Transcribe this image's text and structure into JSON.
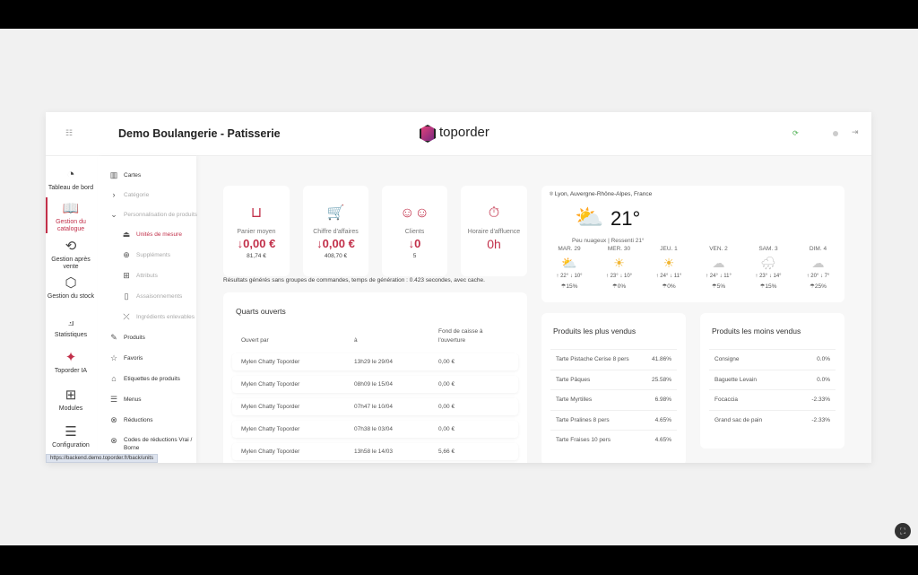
{
  "header": {
    "title": "Demo Boulangerie - Patisserie",
    "brand": "toporder",
    "brand_color": "#c2304a"
  },
  "rail": [
    {
      "label": "Tableau de bord",
      "icon": "gauge-icon"
    },
    {
      "label": "Gestion du catalogue",
      "icon": "book-icon",
      "active": true
    },
    {
      "label": "Gestion après vente",
      "icon": "refresh-gear-icon"
    },
    {
      "label": "Gestion du stock",
      "icon": "box-icon"
    },
    {
      "label": "Statistiques",
      "icon": "chart-icon"
    },
    {
      "label": "Toporder IA",
      "icon": "sparkle-icon"
    },
    {
      "label": "Modules",
      "icon": "modules-icon"
    },
    {
      "label": "Configuration",
      "icon": "sliders-icon"
    }
  ],
  "submenu": {
    "cartes": "Cartes",
    "categorie": "Catégorie",
    "perso": "Personnalisation de produits",
    "unites": "Unités de mesure",
    "supplements": "Suppléments",
    "attributs": "Attributs",
    "assaisonnements": "Assaisonnements",
    "ingredients": "Ingrédients enlevables",
    "produits": "Produits",
    "favoris": "Favoris",
    "etiquettes": "Etiquettes de produits",
    "menus": "Menus",
    "reductions": "Réductions",
    "codes": "Codes de réductions Vrai / Borne"
  },
  "status_url": "https://backend.demo.toporder.fr/back/units",
  "kpis": [
    {
      "label": "Panier moyen",
      "value": "↓0,00 €",
      "previous": "81,74 €"
    },
    {
      "label": "Chiffre d'affaires",
      "value": "↓0,00 €",
      "previous": "408,70 €"
    },
    {
      "label": "Clients",
      "value": "↓0",
      "previous": "5"
    },
    {
      "label": "Horaire d'affluence",
      "value": "0h"
    }
  ],
  "note": "Résultats générés sans groupes de commandes, temps de génération : 0.423 secondes, avec cache.",
  "weather": {
    "location": "Lyon, Auvergne-Rhône-Alpes, France",
    "temp": "21°",
    "desc": "Peu nuageux | Ressenti 21°",
    "days": [
      {
        "day": "MAR. 29",
        "icon": "sun-cloud-icon",
        "hi": "↑ 22°",
        "lo": "↓ 10°",
        "rain": "☂15%"
      },
      {
        "day": "MER. 30",
        "icon": "sun-icon",
        "hi": "↑ 23°",
        "lo": "↓ 10°",
        "rain": "☂0%"
      },
      {
        "day": "JEU. 1",
        "icon": "sun-icon",
        "hi": "↑ 24°",
        "lo": "↓ 11°",
        "rain": "☂0%"
      },
      {
        "day": "VEN. 2",
        "icon": "cloud-icon",
        "hi": "↑ 24°",
        "lo": "↓ 11°",
        "rain": "☂5%"
      },
      {
        "day": "SAM. 3",
        "icon": "rain-icon",
        "hi": "↑ 23°",
        "lo": "↓ 14°",
        "rain": "☂15%"
      },
      {
        "day": "DIM. 4",
        "icon": "cloud-icon",
        "hi": "↑ 20°",
        "lo": "↓ 7°",
        "rain": "☂25%"
      }
    ]
  },
  "shifts": {
    "title": "Quarts ouverts",
    "columns": [
      "Ouvert par",
      "à",
      "Fond de caisse à l'ouverture"
    ],
    "rows": [
      [
        "Mylen Chatty Toporder",
        "13h29 le 29/04",
        "0,00 €"
      ],
      [
        "Mylen Chatty Toporder",
        "08h09 le 15/04",
        "0,00 €"
      ],
      [
        "Mylen Chatty Toporder",
        "07h47 le 10/04",
        "0,00 €"
      ],
      [
        "Mylen Chatty Toporder",
        "07h38 le 03/04",
        "0,00 €"
      ],
      [
        "Mylen Chatty Toporder",
        "13h58 le 14/03",
        "5,66 €"
      ]
    ]
  },
  "best": {
    "title": "Produits les plus vendus",
    "rows": [
      [
        "Tarte Pistache Cerise 8 pers",
        "41.86%"
      ],
      [
        "Tarte Pâques",
        "25.58%"
      ],
      [
        "Tarte Myrtilles",
        "6.98%"
      ],
      [
        "Tarte Pralines 8 pers",
        "4.65%"
      ],
      [
        "Tarte Fraises 10 pers",
        "4.65%"
      ]
    ]
  },
  "worst": {
    "title": "Produits les moins vendus",
    "rows": [
      [
        "Consigne",
        "0.0%"
      ],
      [
        "Baguette Levain",
        "0.0%"
      ],
      [
        "Focaccia",
        "-2.33%"
      ],
      [
        "Grand sac de pain",
        "-2.33%"
      ]
    ]
  }
}
